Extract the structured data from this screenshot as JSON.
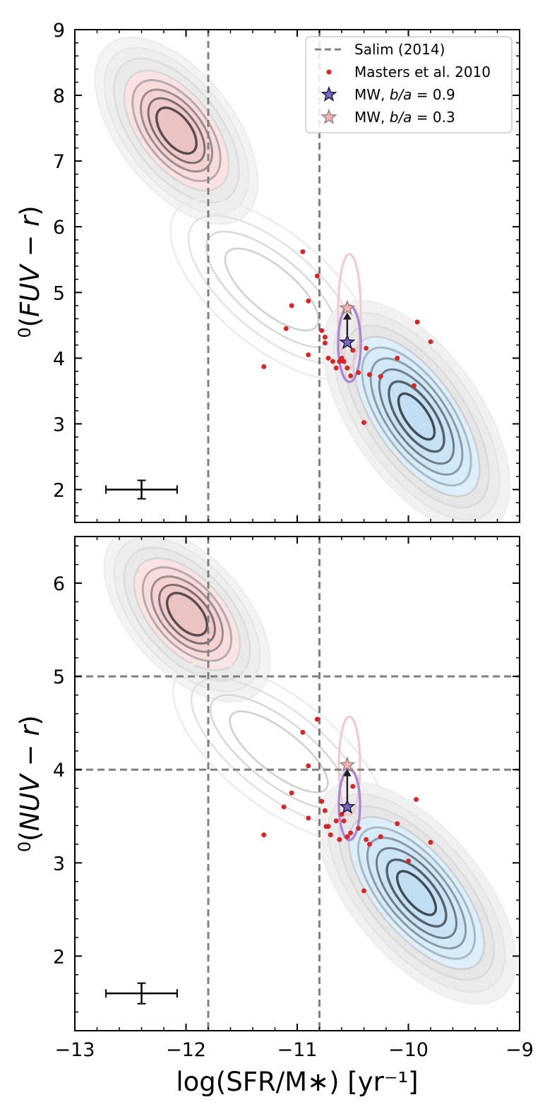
{
  "chart_data": [
    {
      "type": "scatter",
      "panel": "top",
      "ylabel_prefix": "0",
      "ylabel": "(FUV − r)",
      "ylabel_italic": "FUV − r",
      "xlim": [
        -13,
        -9
      ],
      "ylim": [
        1.5,
        9
      ],
      "yticks": [
        "2",
        "3",
        "4",
        "5",
        "6",
        "7",
        "8",
        "9"
      ],
      "vlines": [
        -11.8,
        -10.8
      ],
      "hlines": [],
      "legend": {
        "placement": "top-right",
        "entries": [
          {
            "label": "Salim (2014)",
            "marker": "dashed-line"
          },
          {
            "label": "Masters et al. 2010",
            "marker": "red-dot"
          },
          {
            "label_prefix": "MW, ",
            "label_var": "b/a",
            "label_suffix": " = 0.9",
            "marker": "purple-star"
          },
          {
            "label_prefix": "MW, ",
            "label_var": "b/a",
            "label_suffix": " = 0.3",
            "marker": "pink-star"
          }
        ]
      },
      "series": [
        {
          "name": "Masters et al. 2010",
          "color": "#d62728",
          "x": [
            -11.3,
            -11.1,
            -11.05,
            -10.95,
            -10.9,
            -10.9,
            -10.82,
            -10.78,
            -10.75,
            -10.75,
            -10.72,
            -10.68,
            -10.65,
            -10.62,
            -10.6,
            -10.58,
            -10.55,
            -10.52,
            -10.5,
            -10.45,
            -10.4,
            -10.38,
            -10.35,
            -10.25,
            -10.1,
            -9.95,
            -9.92,
            -9.8
          ],
          "y": [
            3.87,
            4.45,
            4.8,
            5.62,
            4.87,
            4.05,
            5.25,
            4.42,
            4.32,
            4.23,
            4.0,
            3.95,
            3.85,
            3.95,
            4.0,
            3.95,
            3.85,
            3.73,
            4.12,
            3.78,
            3.02,
            4.15,
            3.75,
            3.72,
            4.0,
            3.58,
            4.55,
            4.25
          ]
        },
        {
          "name": "MW, b/a = 0.9",
          "color": "#7b68c8",
          "x": [
            -10.55
          ],
          "y": [
            4.24
          ]
        },
        {
          "name": "MW, b/a = 0.3",
          "color": "#f4a6a6",
          "x": [
            -10.55
          ],
          "y": [
            4.76
          ]
        }
      ],
      "errorbar": {
        "x": -12.4,
        "y": 2.0,
        "xerr": 0.32,
        "yerr": 0.14
      }
    },
    {
      "type": "scatter",
      "panel": "bottom",
      "ylabel_prefix": "0",
      "ylabel": "(NUV − r)",
      "ylabel_italic": "NUV − r",
      "xlabel": "log(SFR/M∗) [yr⁻¹]",
      "xlim": [
        -13,
        -9
      ],
      "ylim": [
        1.2,
        6.5
      ],
      "xticks": [
        "−13",
        "−12",
        "−11",
        "−10",
        "−9"
      ],
      "yticks": [
        "2",
        "3",
        "4",
        "5",
        "6"
      ],
      "vlines": [
        -11.8,
        -10.8
      ],
      "hlines": [
        5.0,
        4.0
      ],
      "series": [
        {
          "name": "Masters et al. 2010",
          "color": "#d62728",
          "x": [
            -11.3,
            -11.12,
            -11.05,
            -10.95,
            -10.9,
            -10.9,
            -10.82,
            -10.78,
            -10.75,
            -10.74,
            -10.72,
            -10.7,
            -10.65,
            -10.62,
            -10.6,
            -10.58,
            -10.55,
            -10.52,
            -10.5,
            -10.45,
            -10.4,
            -10.38,
            -10.35,
            -10.25,
            -10.1,
            -10.0,
            -9.93,
            -9.8
          ],
          "y": [
            3.3,
            3.6,
            3.75,
            4.4,
            4.04,
            3.48,
            4.54,
            3.66,
            3.56,
            3.39,
            3.39,
            3.3,
            3.45,
            3.25,
            3.52,
            3.45,
            3.28,
            3.32,
            3.82,
            3.37,
            2.7,
            3.25,
            3.2,
            3.28,
            3.42,
            3.02,
            3.68,
            3.22
          ]
        },
        {
          "name": "MW, b/a = 0.9",
          "color": "#7b68c8",
          "x": [
            -10.55
          ],
          "y": [
            3.6
          ]
        },
        {
          "name": "MW, b/a = 0.3",
          "color": "#f4a6a6",
          "x": [
            -10.55
          ],
          "y": [
            4.05
          ]
        }
      ],
      "errorbar": {
        "x": -12.4,
        "y": 1.6,
        "xerr": 0.32,
        "yerr": 0.11
      }
    }
  ]
}
